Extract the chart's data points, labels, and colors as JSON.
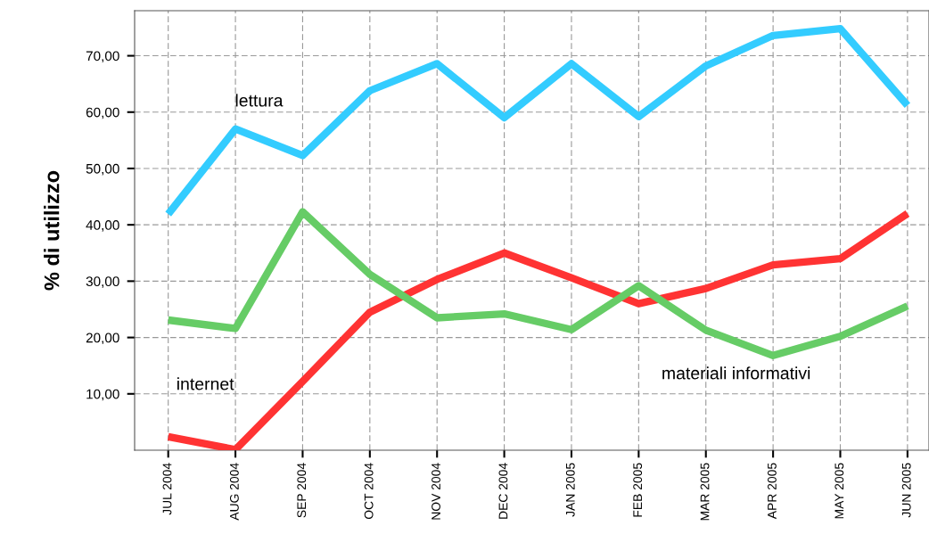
{
  "chart_data": {
    "type": "line",
    "ylabel": "% di utilizzo",
    "categories": [
      "JUL 2004",
      "AUG 2004",
      "SEP 2004",
      "OCT 2004",
      "NOV 2004",
      "DEC 2004",
      "JAN 2005",
      "FEB 2005",
      "MAR 2005",
      "APR 2005",
      "MAY 2005",
      "JUN 2005"
    ],
    "series": [
      {
        "name": "lettura",
        "color": "#33ccff",
        "values": [
          41.9,
          57.0,
          52.3,
          63.8,
          68.6,
          59.0,
          68.6,
          59.2,
          68.2,
          73.6,
          74.8,
          61.2
        ]
      },
      {
        "name": "internet",
        "color": "#ff3333",
        "values": [
          2.4,
          0.1,
          12.2,
          24.5,
          30.3,
          35.0,
          30.6,
          26.0,
          28.7,
          32.9,
          34.0,
          42.0
        ]
      },
      {
        "name": "materiali informativi",
        "color": "#66cc66",
        "values": [
          23.1,
          21.6,
          42.3,
          31.2,
          23.5,
          24.2,
          21.4,
          29.2,
          21.3,
          16.8,
          20.2,
          25.6
        ]
      }
    ],
    "ylim": [
      0,
      78
    ],
    "yticks": [
      {
        "value": 10,
        "label": "10,00"
      },
      {
        "value": 20,
        "label": "20,00"
      },
      {
        "value": 30,
        "label": "30,00"
      },
      {
        "value": 40,
        "label": "40,00"
      },
      {
        "value": 50,
        "label": "50,00"
      },
      {
        "value": 60,
        "label": "60,00"
      },
      {
        "value": 70,
        "label": "70,00"
      }
    ],
    "grid": true,
    "marker": "none",
    "line_style": "solid",
    "legend": false
  }
}
